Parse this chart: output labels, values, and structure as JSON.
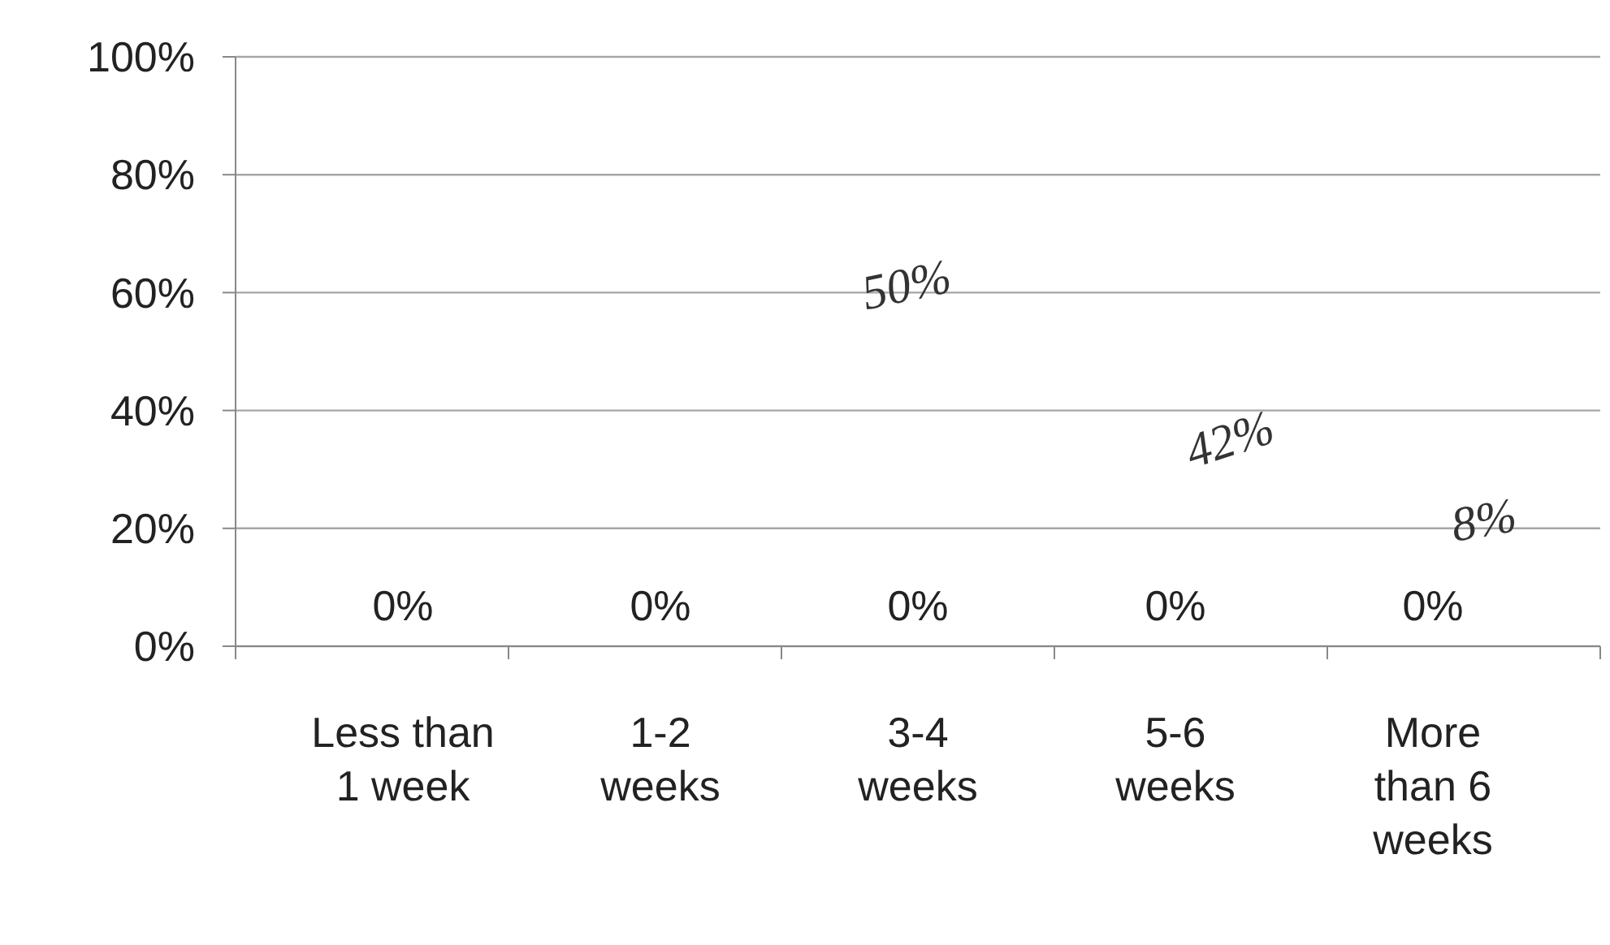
{
  "chart_data": {
    "type": "bar",
    "categories": [
      "Less than\n1 week",
      "1-2\nweeks",
      "3-4\nweeks",
      "5-6\nweeks",
      "More\nthan 6\nweeks"
    ],
    "values": [
      0,
      0,
      0,
      0,
      0
    ],
    "value_labels": [
      "0%",
      "0%",
      "0%",
      "0%",
      "0%"
    ],
    "ylim": [
      0,
      1
    ],
    "yticks": [
      {
        "value": 0,
        "label": "0%"
      },
      {
        "value": 0.2,
        "label": "20%"
      },
      {
        "value": 0.4,
        "label": "40%"
      },
      {
        "value": 0.6,
        "label": "60%"
      },
      {
        "value": 0.8,
        "label": "80%"
      },
      {
        "value": 1,
        "label": "100%"
      }
    ],
    "grid": "y",
    "annotations": [
      "50%",
      "42%",
      "8%"
    ]
  }
}
